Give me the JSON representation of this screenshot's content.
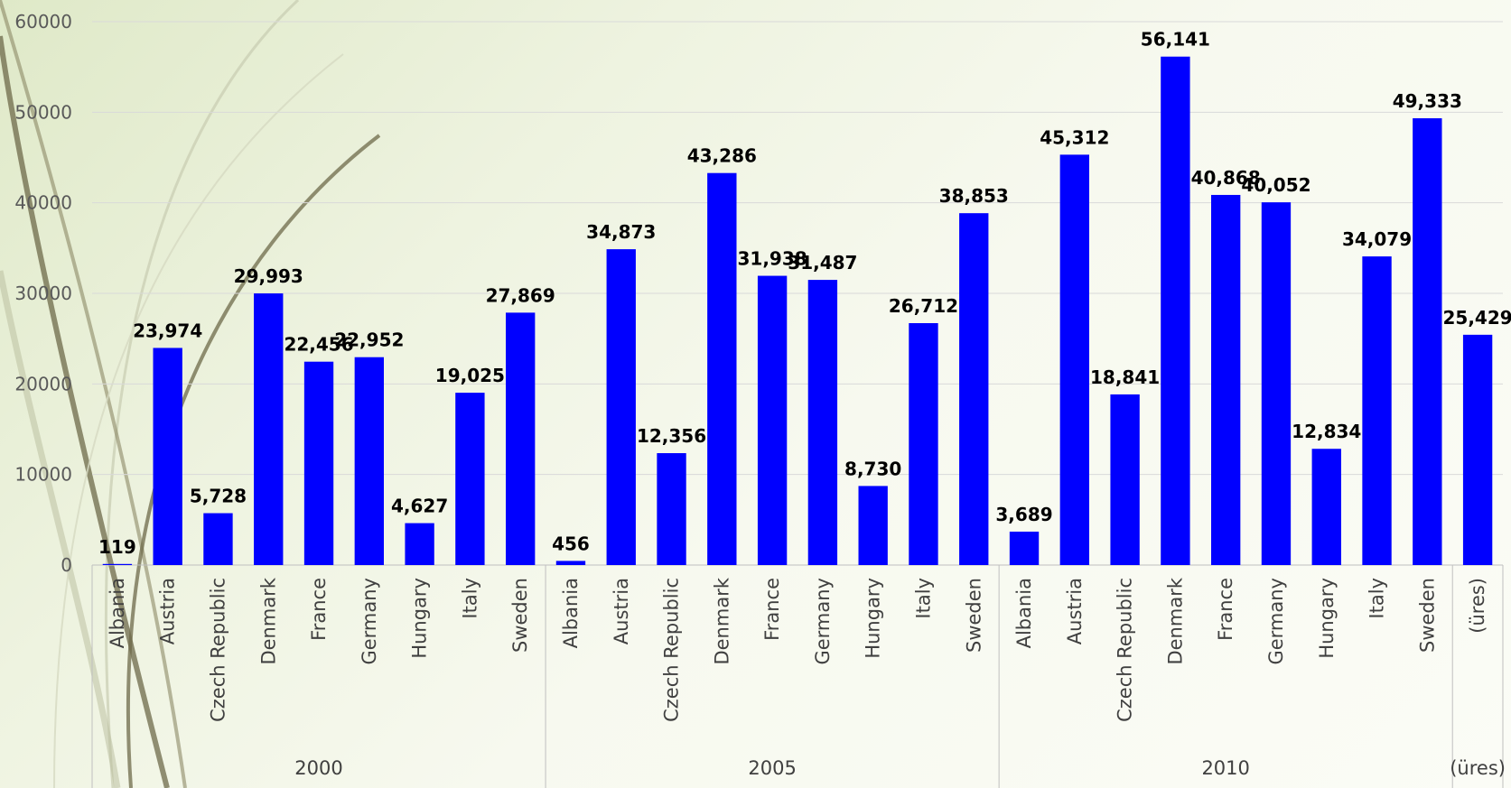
{
  "chart_data": {
    "type": "bar",
    "y_axis": {
      "ylim": [
        0,
        60000
      ],
      "ticks": [
        "0",
        "10000",
        "20000",
        "30000",
        "40000",
        "50000",
        "60000"
      ]
    },
    "grid": true,
    "bar_color": "#0000ff",
    "groups": [
      {
        "label": "2000",
        "categories": [
          "Albania",
          "Austria",
          "Czech Republic",
          "Denmark",
          "France",
          "Germany",
          "Hungary",
          "Italy",
          "Sweden"
        ],
        "values": [
          119,
          23974,
          5728,
          29993,
          22456,
          22952,
          4627,
          19025,
          27869
        ],
        "value_labels": [
          "119",
          "23,974",
          "5,728",
          "29,993",
          "22,456",
          "22,952",
          "4,627",
          "19,025",
          "27,869"
        ]
      },
      {
        "label": "2005",
        "categories": [
          "Albania",
          "Austria",
          "Czech Republic",
          "Denmark",
          "France",
          "Germany",
          "Hungary",
          "Italy",
          "Sweden"
        ],
        "values": [
          456,
          34873,
          12356,
          43286,
          31938,
          31487,
          8730,
          26712,
          38853
        ],
        "value_labels": [
          "456",
          "34,873",
          "12,356",
          "43,286",
          "31,938",
          "31,487",
          "8,730",
          "26,712",
          "38,853"
        ]
      },
      {
        "label": "2010",
        "categories": [
          "Albania",
          "Austria",
          "Czech Republic",
          "Denmark",
          "France",
          "Germany",
          "Hungary",
          "Italy",
          "Sweden"
        ],
        "values": [
          3689,
          45312,
          18841,
          56141,
          40868,
          40052,
          12834,
          34079,
          49333
        ],
        "value_labels": [
          "3,689",
          "45,312",
          "18,841",
          "56,141",
          "40,868",
          "40,052",
          "12,834",
          "34,079",
          "49,333"
        ]
      },
      {
        "label": "(üres)",
        "categories": [
          "(üres)"
        ],
        "values": [
          25429
        ],
        "value_labels": [
          "25,429"
        ]
      }
    ]
  }
}
